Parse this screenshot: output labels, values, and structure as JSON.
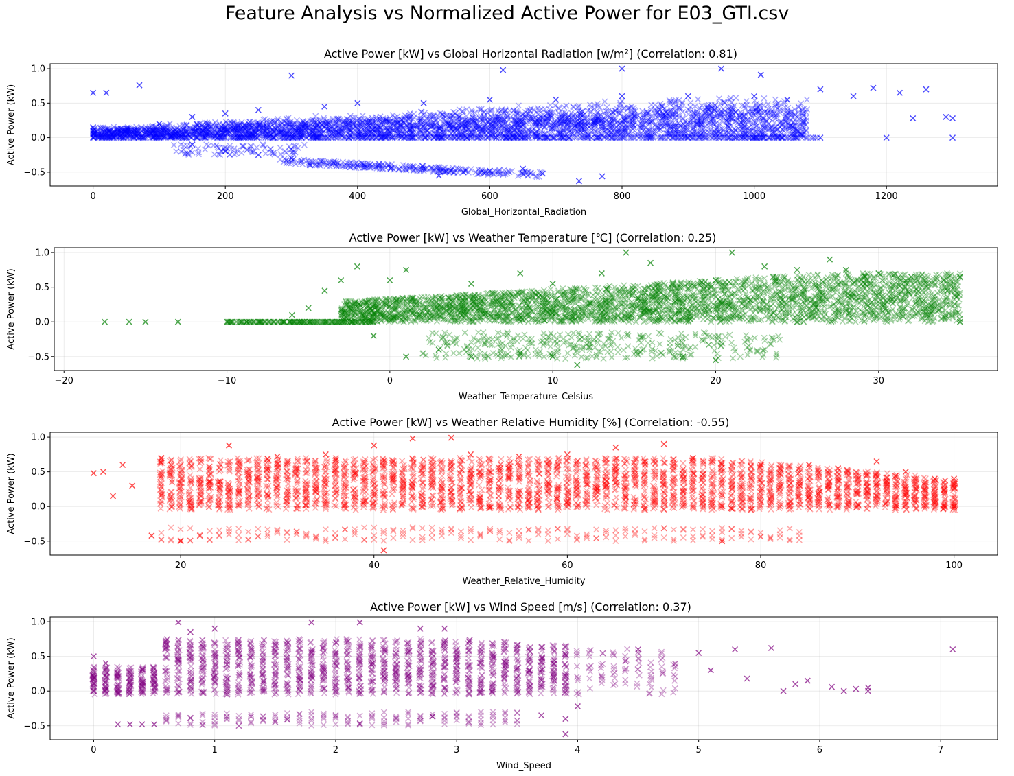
{
  "figure": {
    "suptitle": "Feature Analysis vs Normalized Active Power for E03_GTI.csv"
  },
  "chart_data": [
    {
      "type": "scatter",
      "title": "Active Power [kW] vs Global Horizontal Radiation [w/m²] (Correlation: 0.81)",
      "xlabel": "Global_Horizontal_Radiation",
      "ylabel": "Active Power (kW)",
      "color": "#0000ff",
      "marker": "x",
      "grid": true,
      "xlim": [
        -65,
        1368
      ],
      "ylim": [
        -0.7,
        1.07
      ],
      "xticks": [
        0,
        200,
        400,
        600,
        800,
        1000,
        1200
      ],
      "xticklabels": [
        "0",
        "200",
        "400",
        "600",
        "800",
        "1000",
        "1200"
      ],
      "yticks": [
        -0.5,
        0.0,
        0.5,
        1.0
      ],
      "yticklabels": [
        "−0.5",
        "0.0",
        "0.5",
        "1.0"
      ],
      "series": [
        {
          "points": [
            [
              0,
              0.0
            ],
            [
              0,
              0.05
            ],
            [
              0,
              0.1
            ],
            [
              0,
              0.15
            ],
            [
              0,
              0.65
            ],
            [
              20,
              0.65
            ],
            [
              50,
              0.1
            ],
            [
              70,
              0.76
            ],
            [
              100,
              0.2
            ],
            [
              150,
              0.3
            ],
            [
              150,
              -0.1
            ],
            [
              200,
              0.35
            ],
            [
              200,
              -0.2
            ],
            [
              250,
              0.4
            ],
            [
              250,
              -0.25
            ],
            [
              300,
              0.9
            ],
            [
              300,
              -0.3
            ],
            [
              350,
              0.45
            ],
            [
              400,
              0.5
            ],
            [
              400,
              -0.4
            ],
            [
              450,
              -0.45
            ],
            [
              500,
              0.5
            ],
            [
              500,
              -0.45
            ],
            [
              523,
              -0.55
            ],
            [
              560,
              -0.5
            ],
            [
              600,
              0.55
            ],
            [
              600,
              -0.48
            ],
            [
              620,
              0.98
            ],
            [
              650,
              -0.45
            ],
            [
              680,
              -0.52
            ],
            [
              700,
              0.55
            ],
            [
              735,
              -0.63
            ],
            [
              770,
              -0.56
            ],
            [
              800,
              0.6
            ],
            [
              800,
              1.0
            ],
            [
              900,
              0.6
            ],
            [
              950,
              1.0
            ],
            [
              1000,
              0.6
            ],
            [
              1000,
              0.0
            ],
            [
              1010,
              0.91
            ],
            [
              1050,
              0.55
            ],
            [
              1100,
              0.7
            ],
            [
              1100,
              0.0
            ],
            [
              1150,
              0.6
            ],
            [
              1180,
              0.72
            ],
            [
              1200,
              0.0
            ],
            [
              1220,
              0.65
            ],
            [
              1240,
              0.28
            ],
            [
              1260,
              0.7
            ],
            [
              1290,
              0.3
            ],
            [
              1300,
              0.28
            ],
            [
              1300,
              0.0
            ]
          ]
        }
      ]
    },
    {
      "type": "scatter",
      "title": "Active Power [kW] vs Weather Temperature [℃] (Correlation: 0.25)",
      "xlabel": "Weather_Temperature_Celsius",
      "ylabel": "Active Power (kW)",
      "color": "#008000",
      "marker": "x",
      "grid": true,
      "xlim": [
        -20.6,
        37.3
      ],
      "ylim": [
        -0.7,
        1.07
      ],
      "xticks": [
        -20,
        -10,
        0,
        10,
        20,
        30
      ],
      "xticklabels": [
        "−20",
        "−10",
        "0",
        "10",
        "20",
        "30"
      ],
      "yticks": [
        -0.5,
        0.0,
        0.5,
        1.0
      ],
      "yticklabels": [
        "−0.5",
        "0.0",
        "0.5",
        "1.0"
      ],
      "series": [
        {
          "points": [
            [
              -17.5,
              0.0
            ],
            [
              -16,
              0.0
            ],
            [
              -15,
              0.0
            ],
            [
              -13,
              0.0
            ],
            [
              -10,
              0.0
            ],
            [
              -8,
              0.0
            ],
            [
              -6,
              0.1
            ],
            [
              -5,
              0.2
            ],
            [
              -4,
              0.45
            ],
            [
              -3,
              0.6
            ],
            [
              -2,
              0.8
            ],
            [
              -1,
              -0.2
            ],
            [
              0,
              0.6
            ],
            [
              1,
              0.75
            ],
            [
              1,
              -0.5
            ],
            [
              3,
              -0.4
            ],
            [
              5,
              0.55
            ],
            [
              5,
              -0.5
            ],
            [
              8,
              0.7
            ],
            [
              8,
              -0.45
            ],
            [
              10,
              0.55
            ],
            [
              10,
              -0.5
            ],
            [
              11.5,
              -0.62
            ],
            [
              13,
              0.7
            ],
            [
              14.5,
              1.0
            ],
            [
              16,
              0.85
            ],
            [
              18,
              -0.5
            ],
            [
              20,
              0.6
            ],
            [
              20,
              -0.55
            ],
            [
              21,
              1.0
            ],
            [
              23,
              0.8
            ],
            [
              25,
              0.75
            ],
            [
              25,
              0.0
            ],
            [
              27,
              0.9
            ],
            [
              28,
              0.75
            ],
            [
              30,
              0.7
            ],
            [
              32,
              0.65
            ],
            [
              34,
              0.6
            ],
            [
              35,
              0.65
            ],
            [
              35,
              0.0
            ]
          ]
        }
      ]
    },
    {
      "type": "scatter",
      "title": "Active Power [kW] vs Weather Relative Humidity [%] (Correlation: -0.55)",
      "xlabel": "Weather_Relative_Humidity",
      "ylabel": "Active Power (kW)",
      "color": "#ff0000",
      "marker": "x",
      "grid": true,
      "xlim": [
        6.5,
        104.5
      ],
      "ylim": [
        -0.7,
        1.07
      ],
      "xticks": [
        20,
        40,
        60,
        80,
        100
      ],
      "xticklabels": [
        "20",
        "40",
        "60",
        "80",
        "100"
      ],
      "yticks": [
        -0.5,
        0.0,
        0.5,
        1.0
      ],
      "yticklabels": [
        "−0.5",
        "0.0",
        "0.5",
        "1.0"
      ],
      "series": [
        {
          "points": [
            [
              11,
              0.48
            ],
            [
              12,
              0.5
            ],
            [
              13,
              0.15
            ],
            [
              14,
              0.6
            ],
            [
              15,
              0.3
            ],
            [
              17,
              -0.42
            ],
            [
              18,
              0.7
            ],
            [
              20,
              -0.5
            ],
            [
              25,
              0.88
            ],
            [
              30,
              0.72
            ],
            [
              35,
              0.75
            ],
            [
              40,
              0.88
            ],
            [
              41,
              -0.63
            ],
            [
              44,
              0.98
            ],
            [
              48,
              0.99
            ],
            [
              50,
              0.75
            ],
            [
              55,
              0.72
            ],
            [
              60,
              0.75
            ],
            [
              65,
              0.85
            ],
            [
              70,
              0.9
            ],
            [
              73,
              0.7
            ],
            [
              76,
              -0.5
            ],
            [
              80,
              0.6
            ],
            [
              85,
              0.6
            ],
            [
              88,
              0.55
            ],
            [
              92,
              0.65
            ],
            [
              95,
              0.5
            ],
            [
              98,
              0.4
            ],
            [
              100,
              0.4
            ],
            [
              100,
              0.0
            ]
          ]
        }
      ]
    },
    {
      "type": "scatter",
      "title": "Active Power [kW] vs Wind Speed [m/s] (Correlation: 0.37)",
      "xlabel": "Wind_Speed",
      "ylabel": "Active Power (kW)",
      "color": "#800080",
      "marker": "x",
      "grid": true,
      "xlim": [
        -0.36,
        7.47
      ],
      "ylim": [
        -0.7,
        1.07
      ],
      "xticks": [
        0,
        1,
        2,
        3,
        4,
        5,
        6,
        7
      ],
      "xticklabels": [
        "0",
        "1",
        "2",
        "3",
        "4",
        "5",
        "6",
        "7"
      ],
      "yticks": [
        -0.5,
        0.0,
        0.5,
        1.0
      ],
      "yticklabels": [
        "−0.5",
        "0.0",
        "0.5",
        "1.0"
      ],
      "series": [
        {
          "points": [
            [
              0.0,
              0.5
            ],
            [
              0.0,
              0.0
            ],
            [
              0.1,
              0.4
            ],
            [
              0.2,
              -0.48
            ],
            [
              0.3,
              -0.48
            ],
            [
              0.4,
              -0.48
            ],
            [
              0.5,
              -0.48
            ],
            [
              0.7,
              0.99
            ],
            [
              0.8,
              0.85
            ],
            [
              1.0,
              0.9
            ],
            [
              1.8,
              0.99
            ],
            [
              2.2,
              0.99
            ],
            [
              2.7,
              0.9
            ],
            [
              2.9,
              0.9
            ],
            [
              3.7,
              -0.35
            ],
            [
              3.9,
              -0.4
            ],
            [
              3.9,
              -0.62
            ],
            [
              4.0,
              -0.22
            ],
            [
              4.5,
              0.6
            ],
            [
              5.0,
              0.55
            ],
            [
              5.1,
              0.3
            ],
            [
              5.3,
              0.6
            ],
            [
              5.4,
              0.18
            ],
            [
              5.6,
              0.62
            ],
            [
              5.7,
              0.0
            ],
            [
              5.8,
              0.1
            ],
            [
              5.9,
              0.15
            ],
            [
              6.1,
              0.06
            ],
            [
              6.2,
              0.0
            ],
            [
              6.3,
              0.03
            ],
            [
              6.4,
              0.05
            ],
            [
              6.4,
              0.0
            ],
            [
              7.1,
              0.6
            ]
          ]
        }
      ]
    }
  ]
}
